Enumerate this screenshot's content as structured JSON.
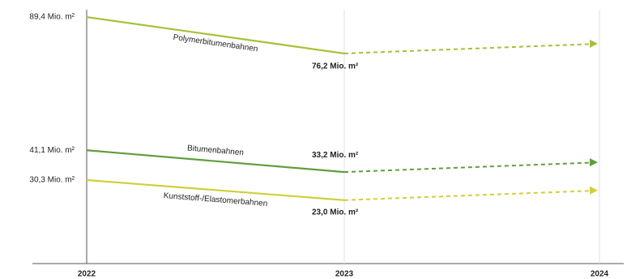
{
  "chart_data": {
    "type": "line",
    "x": [
      "2022",
      "2023",
      "2024"
    ],
    "ylim": [
      0,
      90
    ],
    "series": [
      {
        "name": "Polymerbitumenbahnen",
        "color": "#a3c23a",
        "values": [
          89.4,
          76.2,
          null
        ],
        "value_labels": [
          "89,4 Mio. m²",
          "76,2 Mio. m²",
          null
        ]
      },
      {
        "name": "Bitumenbahnen",
        "color": "#5f9f3c",
        "values": [
          41.1,
          33.2,
          null
        ],
        "value_labels": [
          "41,1 Mio. m²",
          "33,2 Mio. m²",
          null
        ]
      },
      {
        "name": "Kunststoff-/Elastomerbahnen",
        "color": "#cfcf3a",
        "values": [
          30.3,
          23.0,
          null
        ],
        "value_labels": [
          "30,3 Mio. m²",
          "23,0 Mio. m²",
          null
        ]
      }
    ]
  }
}
